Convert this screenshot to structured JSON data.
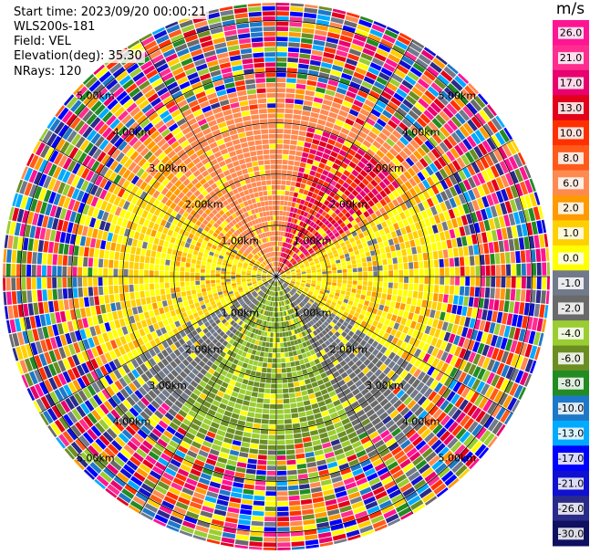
{
  "header": {
    "start_time": "Start time: 2023/09/20 00:00:21",
    "instrument": "WLS200s-181",
    "field": "Field: VEL",
    "elevation": "Elevation(deg): 35.30",
    "nrays": "NRays: 120"
  },
  "chart_data": {
    "type": "heatmap",
    "projection": "polar-ppi",
    "field": "VEL",
    "units": "m/s",
    "elevation_deg": 35.3,
    "n_rays": 120,
    "range_rings_km": [
      1,
      2,
      3,
      4,
      5
    ],
    "ring_labels": [
      "1.00km",
      "2.00km",
      "3.00km",
      "4.00km",
      "5.00km"
    ],
    "max_range_km": 5.35,
    "colorbar": {
      "title": "m/s",
      "ticks": [
        "26.0",
        "21.0",
        "17.0",
        "13.0",
        "10.0",
        "8.0",
        "6.0",
        "2.0",
        "1.0",
        "0.0",
        "-1.0",
        "-2.0",
        "-4.0",
        "-6.0",
        "-8.0",
        "-10.0",
        "-13.0",
        "-17.0",
        "-21.0",
        "-26.0",
        "-30.0"
      ],
      "colors": [
        "#ff1493",
        "#ff2d8f",
        "#e8006e",
        "#e2001a",
        "#ff3000",
        "#ff5a1a",
        "#ff8a50",
        "#ff9a00",
        "#ffd000",
        "#ffff00",
        "#707a8a",
        "#6a6a6a",
        "#9acd32",
        "#6b8e23",
        "#228b22",
        "#1e78c8",
        "#00aaff",
        "#0000ff",
        "#1010d0",
        "#2a2a8a",
        "#101060"
      ]
    },
    "velocity_pattern": {
      "description_values_ms": {
        "near_north_northwest": 2.0,
        "near_northeast": 8.0,
        "east_west_band": 0.0,
        "south_southwest": -4.0,
        "south_core": -6.0,
        "outer_ranges": "noisy"
      }
    }
  }
}
